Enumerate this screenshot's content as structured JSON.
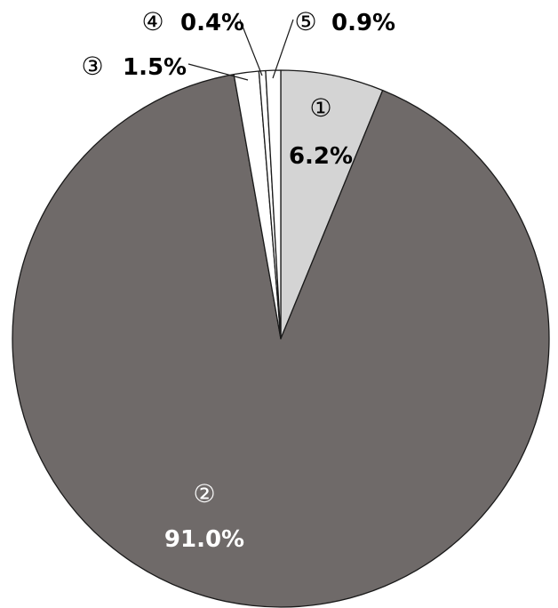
{
  "chart_data": {
    "type": "pie",
    "title": "",
    "legend": "none",
    "categories": [
      "①",
      "②",
      "③",
      "④",
      "⑤"
    ],
    "values": [
      6.2,
      91.0,
      1.5,
      0.4,
      0.9
    ],
    "labels": [
      "6.2%",
      "91.0%",
      "1.5%",
      "0.4%",
      "0.9%"
    ],
    "colors": [
      "#d4d4d4",
      "#6f6a69",
      "#ffffff",
      "#ffffff",
      "#ffffff"
    ]
  }
}
